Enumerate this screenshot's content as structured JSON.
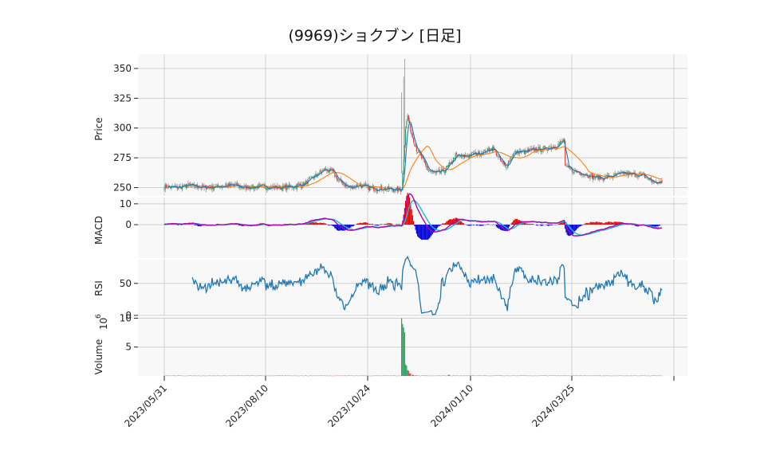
{
  "chart_data": {
    "type": "candlestick",
    "title": "(9969)ショクブン [日足]",
    "colors": {
      "up": "#2ca25f",
      "down": "#e8413b",
      "ma_short": "#1f77b4",
      "ma_long": "#ff7f0e",
      "macd": "#b000b0",
      "signal": "#17becf",
      "hist_pos": "#ee0000",
      "hist_neg": "#0000dd",
      "rsi": "#1f77b4",
      "vol_up": "#2ca25f",
      "vol_down": "#e8413b",
      "grid": "#cfcfcf",
      "panel_bg": "#f8f8f8"
    },
    "x_ticks": [
      "2023/05/31",
      "2023/08/10",
      "2023/10/24",
      "2024/01/10",
      "2024/03/25"
    ],
    "panels": {
      "price": {
        "ylabel": "Price",
        "ylim": [
          243,
          362
        ],
        "yticks": [
          "250",
          "275",
          "300",
          "325",
          "350"
        ]
      },
      "macd": {
        "ylabel": "MACD",
        "ylim": [
          -16,
          13
        ],
        "yticks": [
          "0",
          "10"
        ]
      },
      "rsi": {
        "ylabel": "RSI",
        "ylim": [
          0,
          87
        ],
        "yticks": [
          "0",
          "50"
        ]
      },
      "volume": {
        "ylabel": "Volume",
        "ylabel_exp": "10",
        "ylabel_sup": "6",
        "ylim": [
          0,
          10.2
        ],
        "yticks": [
          "5",
          "10"
        ]
      }
    },
    "price_keypoints": [
      [
        0,
        251
      ],
      [
        12,
        250
      ],
      [
        25,
        252
      ],
      [
        40,
        250
      ],
      [
        55,
        251
      ],
      [
        70,
        252
      ],
      [
        80,
        250
      ],
      [
        95,
        251
      ],
      [
        115,
        250
      ],
      [
        130,
        251
      ],
      [
        140,
        253
      ],
      [
        148,
        258
      ],
      [
        155,
        262
      ],
      [
        160,
        265
      ],
      [
        168,
        264
      ],
      [
        175,
        256
      ],
      [
        185,
        250
      ],
      [
        195,
        252
      ],
      [
        205,
        250
      ],
      [
        215,
        249
      ],
      [
        225,
        249
      ],
      [
        232,
        248
      ],
      [
        238,
        248
      ],
      [
        240,
        275
      ],
      [
        242,
        300
      ],
      [
        244,
        310
      ],
      [
        248,
        295
      ],
      [
        253,
        282
      ],
      [
        258,
        275
      ],
      [
        264,
        265
      ],
      [
        272,
        262
      ],
      [
        280,
        264
      ],
      [
        287,
        270
      ],
      [
        292,
        277
      ],
      [
        300,
        276
      ],
      [
        310,
        278
      ],
      [
        320,
        280
      ],
      [
        330,
        283
      ],
      [
        336,
        274
      ],
      [
        342,
        267
      ],
      [
        348,
        276
      ],
      [
        352,
        280
      ],
      [
        362,
        280
      ],
      [
        372,
        282
      ],
      [
        385,
        283
      ],
      [
        395,
        286
      ],
      [
        401,
        290
      ],
      [
        402,
        268
      ],
      [
        410,
        264
      ],
      [
        420,
        262
      ],
      [
        430,
        259
      ],
      [
        440,
        258
      ],
      [
        450,
        260
      ],
      [
        460,
        262
      ],
      [
        470,
        261
      ],
      [
        480,
        260
      ],
      [
        492,
        254
      ]
    ],
    "volume_spikes": [
      [
        238,
        10.0
      ],
      [
        240,
        8.4
      ],
      [
        242,
        2.0
      ],
      [
        244,
        1.0
      ],
      [
        246,
        0.45
      ],
      [
        249,
        0.2
      ],
      [
        252,
        0.1
      ],
      [
        260,
        0.06
      ],
      [
        285,
        0.2
      ]
    ]
  }
}
